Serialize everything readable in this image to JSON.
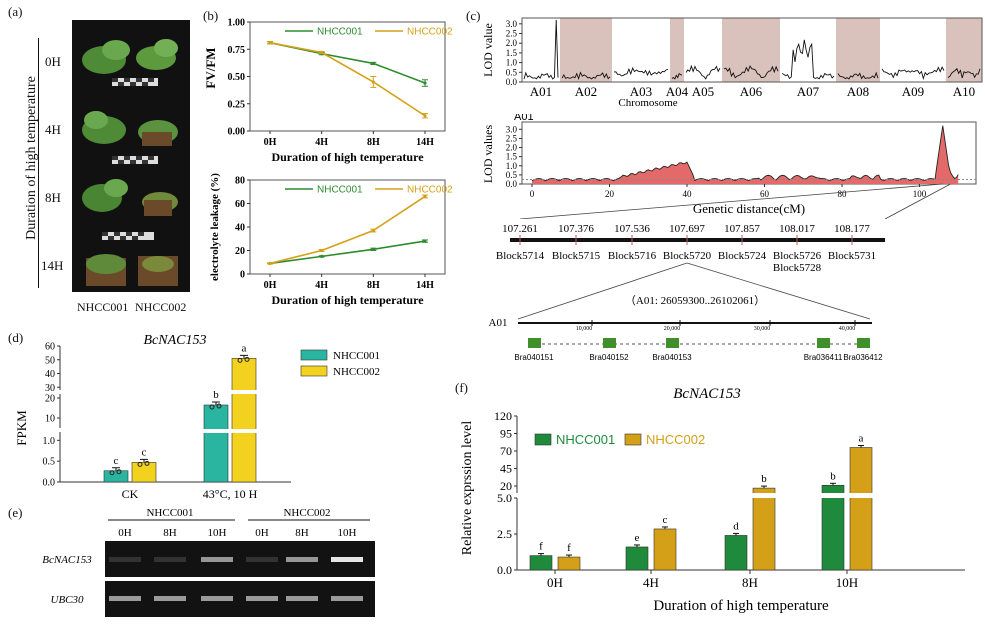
{
  "panels": {
    "a": {
      "label": "(a)",
      "axis_title": "Duration of high temperature",
      "times": [
        "0H",
        "4H",
        "8H",
        "14H"
      ],
      "genotypes": [
        "NHCC001",
        "NHCC002"
      ]
    },
    "b": {
      "label": "(b)"
    },
    "c": {
      "label": "(c)",
      "genome_ylabel": "LOD value",
      "genome_xlabel": "Chromosome",
      "chromosomes": [
        "A01",
        "A02",
        "A03",
        "A04",
        "A05",
        "A06",
        "A07",
        "A08",
        "A09",
        "A10"
      ],
      "genome_yticks": [
        "0.0",
        "0.5",
        "1.0",
        "1.5",
        "2.0",
        "2.5",
        "3.0"
      ],
      "a01_title": "A01",
      "a01_ylabel": "LOD values",
      "a01_xlabel": "Genetic distance(cM)",
      "a01_xticks": [
        "0",
        "20",
        "40",
        "60",
        "80",
        "100"
      ],
      "a01_yticks": [
        "0.0",
        "0.5",
        "1.0",
        "1.5",
        "2.0",
        "2.5",
        "3.0"
      ],
      "marker_positions": [
        "107.261",
        "107.376",
        "107.536",
        "107.697",
        "107.857",
        "108.017",
        "108.177"
      ],
      "marker_blocks": [
        "Block5714",
        "Block5715",
        "Block5716",
        "Block5720",
        "Block5724",
        "Block5726",
        "Block5731"
      ],
      "extra_block": "Block5728",
      "region": "（A01:  26059300..26102061）",
      "region_chr": "A01",
      "bp_ticks": [
        "10,000",
        "20,000",
        "30,000",
        "40,000"
      ],
      "genes": [
        "Bra040151",
        "Bra040152",
        "Bra040153",
        "Bra036411",
        "Bra036412"
      ]
    },
    "d": {
      "label": "(d)",
      "gene": "BcNAC153",
      "ylabel": "FPKM"
    },
    "e": {
      "label": "(e)",
      "genotypes": [
        "NHCC001",
        "NHCC002"
      ],
      "lanes": [
        "0H",
        "8H",
        "10H",
        "0H",
        "8H",
        "10H"
      ],
      "rows": [
        "BcNAC153",
        "UBC30"
      ]
    },
    "f": {
      "label": "(f)",
      "gene": "BcNAC153"
    }
  },
  "colors": {
    "nhcc001_line": "#2e8b2e",
    "nhcc002_line": "#d4a017",
    "d_nhcc001": "#2ab5a0",
    "d_nhcc002": "#f2d21e",
    "f_nhcc001": "#1f8a3c",
    "f_nhcc002": "#d4a017",
    "lod_fill": "#e46a6a",
    "shade": "#d9c2bc"
  },
  "chart_data": [
    {
      "id": "b-top",
      "type": "line",
      "categories": [
        "0H",
        "4H",
        "8H",
        "14H"
      ],
      "series": [
        {
          "name": "NHCC001",
          "values": [
            0.81,
            0.71,
            0.62,
            0.44
          ],
          "errors": [
            0.01,
            0.01,
            0.01,
            0.03
          ]
        },
        {
          "name": "NHCC002",
          "values": [
            0.81,
            0.72,
            0.45,
            0.14
          ],
          "errors": [
            0.01,
            0.01,
            0.05,
            0.02
          ]
        }
      ],
      "xlabel": "Duration of high temperature",
      "ylabel": "FV/FM",
      "ylim": [
        0,
        1.0
      ],
      "yticks": [
        "0.00",
        "0.25",
        "0.50",
        "0.75",
        "1.00"
      ],
      "legend": "top"
    },
    {
      "id": "b-bottom",
      "type": "line",
      "categories": [
        "0H",
        "4H",
        "8H",
        "14H"
      ],
      "series": [
        {
          "name": "NHCC001",
          "values": [
            9,
            15,
            21,
            28
          ],
          "errors": [
            0.3,
            0.5,
            1.0,
            1.0
          ]
        },
        {
          "name": "NHCC002",
          "values": [
            9,
            20,
            37,
            66
          ],
          "errors": [
            0.3,
            0.8,
            1.2,
            1.2
          ]
        }
      ],
      "xlabel": "Duration of high temperature",
      "ylabel": "electrolyte leakage (%)",
      "ylim": [
        0,
        80
      ],
      "yticks": [
        "0",
        "20",
        "40",
        "60",
        "80"
      ],
      "legend": "top"
    },
    {
      "id": "d",
      "type": "bar",
      "categories": [
        "CK",
        "43°C, 10 H"
      ],
      "series": [
        {
          "name": "NHCC001",
          "values": [
            0.27,
            16.5
          ],
          "letters": [
            "c",
            "b"
          ]
        },
        {
          "name": "NHCC002",
          "values": [
            0.47,
            51.0
          ],
          "letters": [
            "c",
            "a"
          ]
        }
      ],
      "ylabel": "FPKM",
      "yticks": [
        "0.0",
        "0.5",
        "1.0",
        "10",
        "20",
        "30",
        "40",
        "50",
        "60"
      ],
      "legend": "right"
    },
    {
      "id": "f",
      "type": "bar",
      "title": "BcNAC153",
      "categories": [
        "0H",
        "4H",
        "8H",
        "10H"
      ],
      "series": [
        {
          "name": "NHCC001",
          "values": [
            1.0,
            1.6,
            2.4,
            21.0
          ],
          "letters": [
            "f",
            "e",
            "d",
            "b"
          ]
        },
        {
          "name": "NHCC002",
          "values": [
            0.9,
            2.85,
            17.0,
            75.0
          ],
          "letters": [
            "f",
            "c",
            "b",
            "a"
          ]
        }
      ],
      "xlabel": "Duration of high temperature",
      "ylabel": "Relative exprssion level",
      "yticks": [
        "0.0",
        "2.5",
        "5.0",
        "20",
        "45",
        "70",
        "95",
        "120"
      ],
      "legend": "top-left"
    }
  ]
}
